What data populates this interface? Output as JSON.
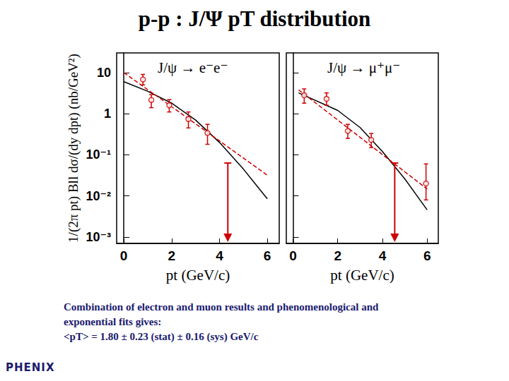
{
  "title": "p-p : J/Ψ pT distribution",
  "caption": [
    "Combination of electron and muon results and phenomenological and",
    "exponential fits gives:",
    "<pT> = 1.80 ± 0.23 (stat) ± 0.16 (sys) GeV/c"
  ],
  "logo": "PHENIX",
  "chart_data": [
    {
      "type": "scatter",
      "annotation": "J/ψ → e⁻e⁻",
      "x_label": "pt (GeV/c)",
      "y_label": "1/(2π pt) Bll dσ/(dy dpt) (nb/GeV²)",
      "log": "y",
      "xlim": [
        -0.3,
        6.5
      ],
      "xticks": [
        0,
        2,
        4,
        6
      ],
      "ylim": [
        0.0007,
        30
      ],
      "yticks": [
        {
          "value": 0.001,
          "label": "10⁻³"
        },
        {
          "value": 0.01,
          "label": "10⁻²"
        },
        {
          "value": 0.1,
          "label": "10⁻¹"
        },
        1,
        10
      ],
      "series": [
        {
          "type": "scatter",
          "marker": "circle",
          "color": "#cc0000",
          "x": [
            0.8,
            1.15,
            1.9,
            2.7,
            3.5
          ],
          "values": [
            6.8,
            2.15,
            1.6,
            0.74,
            0.34
          ],
          "y_low": [
            5,
            1.4,
            1.1,
            0.45,
            0.18
          ],
          "y_high": [
            9,
            2.9,
            2.2,
            1.1,
            0.55
          ]
        },
        {
          "type": "upper_limit",
          "color": "#cc0000",
          "x": [
            4.35
          ],
          "values": [
            0.063
          ]
        },
        {
          "type": "line",
          "line_style": "solid",
          "color": "#000000",
          "x": [
            0,
            1,
            2,
            3,
            4,
            5,
            6
          ],
          "values": [
            6,
            3.5,
            1.8,
            0.7,
            0.2,
            0.045,
            0.0085
          ]
        },
        {
          "type": "line",
          "line_style": "dashed",
          "color": "#cc0000",
          "x": [
            0,
            6
          ],
          "values": [
            10,
            0.032
          ]
        }
      ]
    },
    {
      "type": "scatter",
      "annotation": "J/ψ → μ⁺μ⁻",
      "x_label": "pt (GeV/c)",
      "tick_labels": "x",
      "log": "y",
      "xlim": [
        -0.3,
        6.5
      ],
      "xticks": [
        0,
        2,
        4,
        6
      ],
      "ylim": [
        0.0007,
        30
      ],
      "yticks": [
        {
          "value": 0.001,
          "label": "10⁻³"
        },
        {
          "value": 0.01,
          "label": "10⁻²"
        },
        {
          "value": 0.1,
          "label": "10⁻¹"
        },
        1,
        10
      ],
      "series": [
        {
          "type": "scatter",
          "marker": "circle",
          "color": "#cc0000",
          "x": [
            0.5,
            1.5,
            2.45,
            3.5,
            5.95
          ],
          "values": [
            2.8,
            2.3,
            0.38,
            0.23,
            0.02
          ],
          "y_low": [
            1.8,
            1.6,
            0.25,
            0.15,
            0.008
          ],
          "y_high": [
            4,
            3.2,
            0.55,
            0.33,
            0.06
          ]
        },
        {
          "type": "upper_limit",
          "color": "#cc0000",
          "x": [
            4.55
          ],
          "values": [
            0.063
          ]
        },
        {
          "type": "line",
          "line_style": "solid",
          "color": "#000000",
          "x": [
            0.25,
            2,
            3,
            4,
            5,
            6
          ],
          "values": [
            3.2,
            1.2,
            0.46,
            0.12,
            0.026,
            0.0046
          ]
        },
        {
          "type": "line",
          "line_style": "dashed",
          "color": "#cc0000",
          "x": [
            0.25,
            6
          ],
          "values": [
            3.8,
            0.0147
          ]
        }
      ]
    }
  ]
}
